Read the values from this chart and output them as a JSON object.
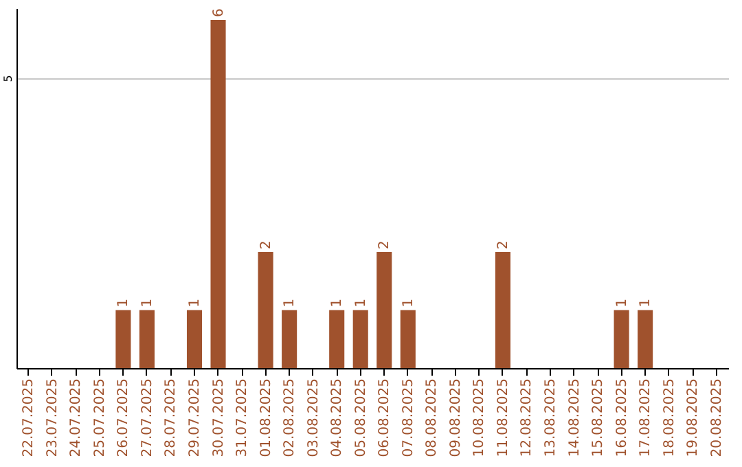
{
  "chart_data": {
    "type": "bar",
    "categories": [
      "22.07.2025",
      "23.07.2025",
      "24.07.2025",
      "25.07.2025",
      "26.07.2025",
      "27.07.2025",
      "28.07.2025",
      "29.07.2025",
      "30.07.2025",
      "31.07.2025",
      "01.08.2025",
      "02.08.2025",
      "03.08.2025",
      "04.08.2025",
      "05.08.2025",
      "06.08.2025",
      "07.08.2025",
      "08.08.2025",
      "09.08.2025",
      "10.08.2025",
      "11.08.2025",
      "12.08.2025",
      "13.08.2025",
      "14.08.2025",
      "15.08.2025",
      "16.08.2025",
      "17.08.2025",
      "18.08.2025",
      "19.08.2025",
      "20.08.2025"
    ],
    "values": [
      0,
      0,
      0,
      0,
      1,
      1,
      0,
      1,
      6,
      0,
      2,
      1,
      0,
      1,
      1,
      2,
      1,
      0,
      0,
      0,
      2,
      0,
      0,
      0,
      0,
      1,
      1,
      0,
      0,
      0
    ],
    "value_labels": [
      null,
      null,
      null,
      null,
      "1",
      "1",
      null,
      "1",
      "6",
      null,
      "2",
      "1",
      null,
      "1",
      "1",
      "2",
      "1",
      null,
      null,
      null,
      "2",
      null,
      null,
      null,
      null,
      "1",
      "1",
      null,
      null,
      null
    ],
    "color": "#a0522d",
    "ylim": [
      0,
      6.2
    ],
    "yticks": [
      5
    ],
    "grid": "y"
  }
}
